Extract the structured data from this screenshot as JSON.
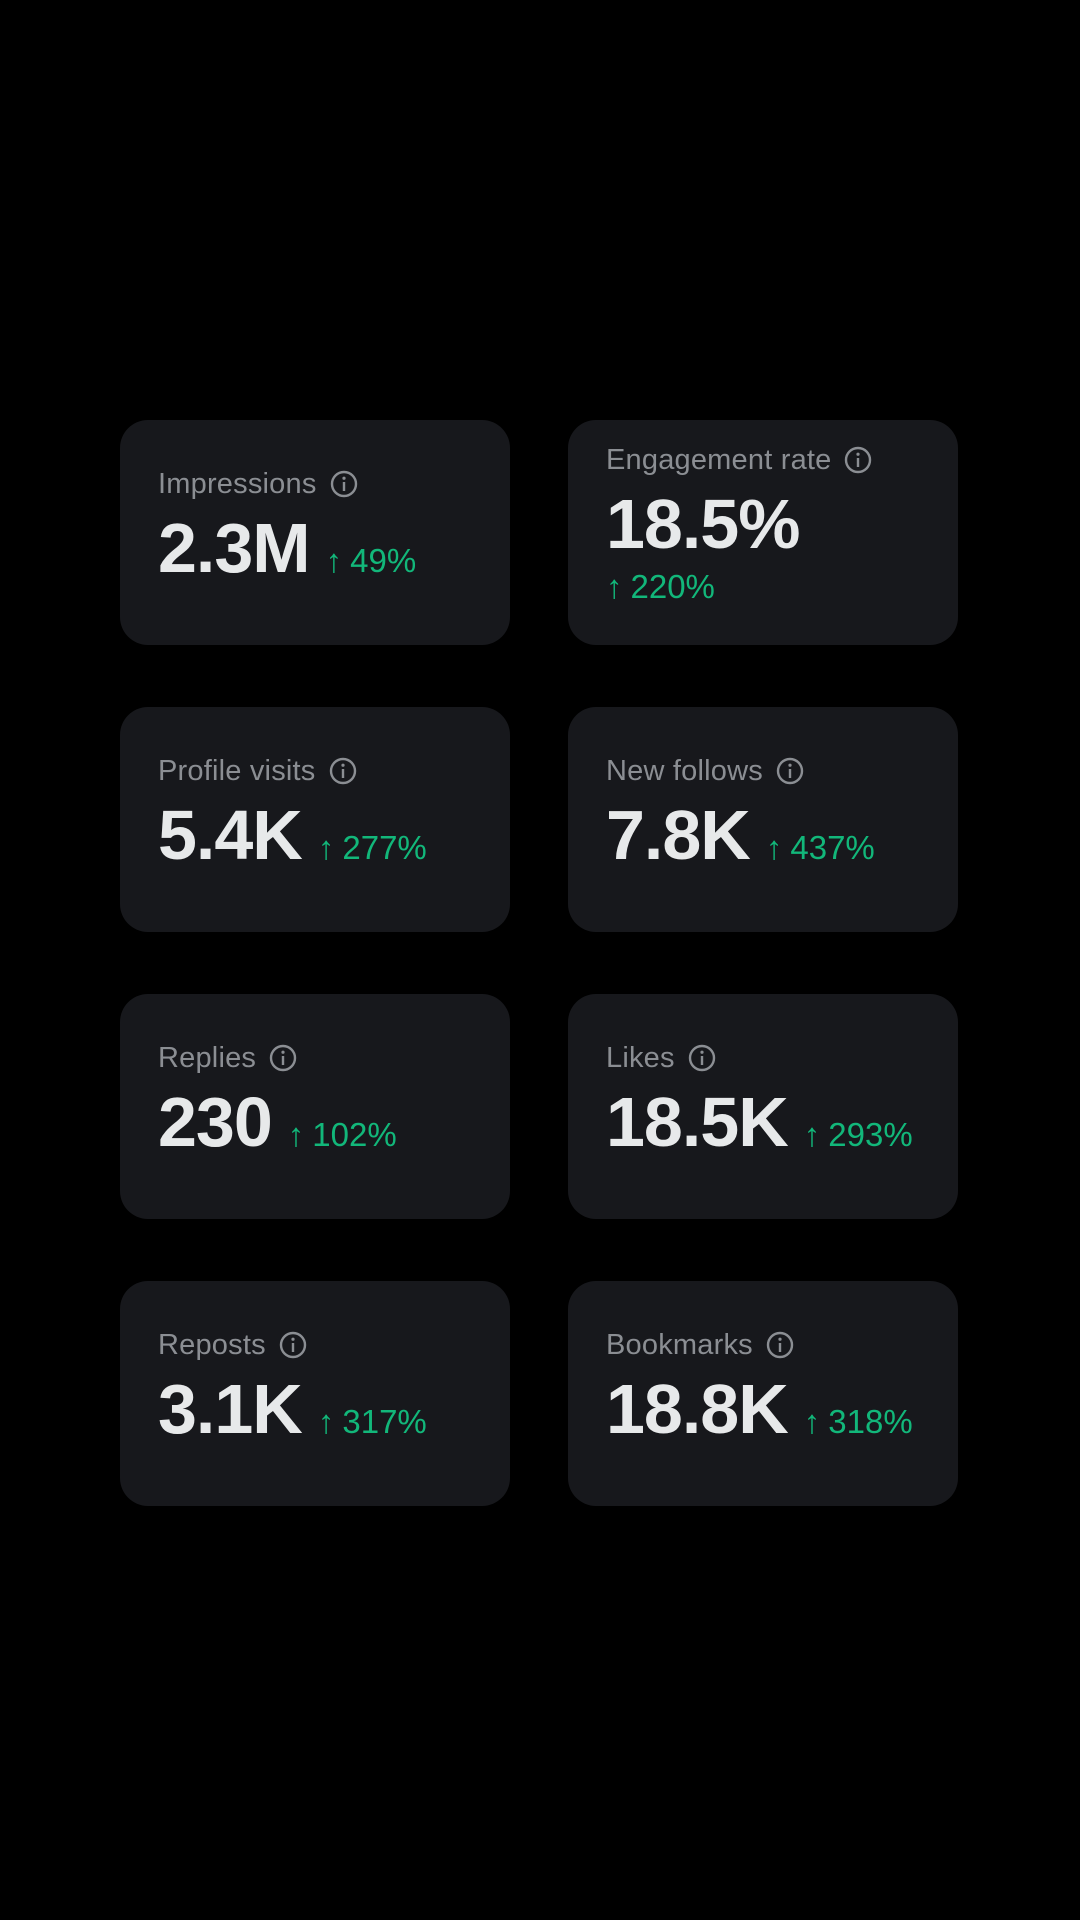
{
  "colors": {
    "background": "#000000",
    "card": "#17181c",
    "label": "#8b8e93",
    "value": "#e7e9ea",
    "positive": "#12b77a"
  },
  "icons": {
    "info": "info-circle-icon",
    "trend": "arrow-up-icon"
  },
  "arrow_symbol": "↑",
  "metrics": [
    {
      "label": "Impressions",
      "value": "2.3M",
      "change": "49%"
    },
    {
      "label": "Engagement rate",
      "value": "18.5%",
      "change": "220%"
    },
    {
      "label": "Profile visits",
      "value": "5.4K",
      "change": "277%"
    },
    {
      "label": "New follows",
      "value": "7.8K",
      "change": "437%"
    },
    {
      "label": "Replies",
      "value": "230",
      "change": "102%"
    },
    {
      "label": "Likes",
      "value": "18.5K",
      "change": "293%"
    },
    {
      "label": "Reposts",
      "value": "3.1K",
      "change": "317%"
    },
    {
      "label": "Bookmarks",
      "value": "18.8K",
      "change": "318%"
    }
  ]
}
